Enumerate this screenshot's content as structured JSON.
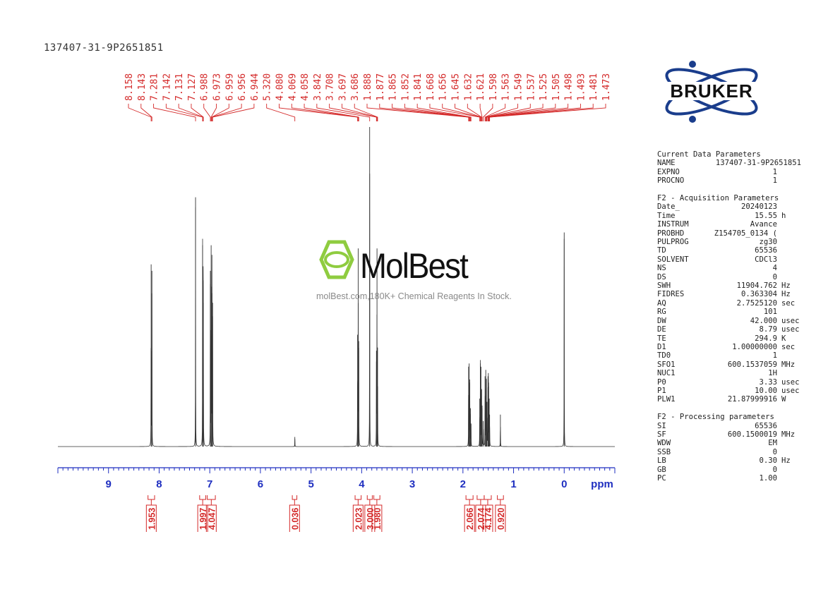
{
  "sample_id": "137407-31-9P2651851",
  "brand": "BRUKER",
  "watermark": {
    "name": "MolBest",
    "tagline": "molBest.com,180K+ Chemical Reagents In Stock."
  },
  "params": {
    "current": {
      "title": "Current Data Parameters",
      "rows": [
        {
          "key": "NAME",
          "value": "137407-31-9P2651851",
          "unit": ""
        },
        {
          "key": "EXPNO",
          "value": "1",
          "unit": ""
        },
        {
          "key": "PROCNO",
          "value": "1",
          "unit": ""
        }
      ]
    },
    "acquisition": {
      "title": "F2 - Acquisition Parameters",
      "rows": [
        {
          "key": "Date_",
          "value": "20240123",
          "unit": ""
        },
        {
          "key": "Time",
          "value": "15.55",
          "unit": "h"
        },
        {
          "key": "INSTRUM",
          "value": "Avance",
          "unit": ""
        },
        {
          "key": "PROBHD",
          "value": "Z154705_0134 (",
          "unit": ""
        },
        {
          "key": "PULPROG",
          "value": "zg30",
          "unit": ""
        },
        {
          "key": "TD",
          "value": "65536",
          "unit": ""
        },
        {
          "key": "SOLVENT",
          "value": "CDCl3",
          "unit": ""
        },
        {
          "key": "NS",
          "value": "4",
          "unit": ""
        },
        {
          "key": "DS",
          "value": "0",
          "unit": ""
        },
        {
          "key": "SWH",
          "value": "11904.762",
          "unit": "Hz"
        },
        {
          "key": "FIDRES",
          "value": "0.363304",
          "unit": "Hz"
        },
        {
          "key": "AQ",
          "value": "2.7525120",
          "unit": "sec"
        },
        {
          "key": "RG",
          "value": "101",
          "unit": ""
        },
        {
          "key": "DW",
          "value": "42.000",
          "unit": "usec"
        },
        {
          "key": "DE",
          "value": "8.79",
          "unit": "usec"
        },
        {
          "key": "TE",
          "value": "294.9",
          "unit": "K"
        },
        {
          "key": "D1",
          "value": "1.00000000",
          "unit": "sec"
        },
        {
          "key": "TD0",
          "value": "1",
          "unit": ""
        },
        {
          "key": "SFO1",
          "value": "600.1537059",
          "unit": "MHz"
        },
        {
          "key": "NUC1",
          "value": "1H",
          "unit": ""
        },
        {
          "key": "P0",
          "value": "3.33",
          "unit": "usec"
        },
        {
          "key": "P1",
          "value": "10.00",
          "unit": "usec"
        },
        {
          "key": "PLW1",
          "value": "21.87999916",
          "unit": "W"
        }
      ]
    },
    "processing": {
      "title": "F2 - Processing parameters",
      "rows": [
        {
          "key": "SI",
          "value": "65536",
          "unit": ""
        },
        {
          "key": "SF",
          "value": "600.1500019",
          "unit": "MHz"
        },
        {
          "key": "WDW",
          "value": "EM",
          "unit": ""
        },
        {
          "key": "SSB",
          "value": "0",
          "unit": ""
        },
        {
          "key": "LB",
          "value": "0.30",
          "unit": "Hz"
        },
        {
          "key": "GB",
          "value": "0",
          "unit": ""
        },
        {
          "key": "PC",
          "value": "1.00",
          "unit": ""
        }
      ]
    }
  },
  "colors": {
    "peak_labels": "#d42a2a",
    "axis": "#1f2fc0",
    "spectrum": "#333333",
    "logo": "#1a3d8c"
  },
  "chart_data": {
    "type": "line",
    "xlabel": "ppm",
    "xlim": [
      10.0,
      -1.0
    ],
    "x_ticks": [
      9,
      8,
      7,
      6,
      5,
      4,
      3,
      2,
      1,
      0
    ],
    "peak_labels": [
      "8.158",
      "8.143",
      "7.281",
      "7.142",
      "7.131",
      "7.127",
      "6.988",
      "6.973",
      "6.959",
      "6.956",
      "6.944",
      "5.320",
      "4.080",
      "4.069",
      "4.058",
      "3.842",
      "3.708",
      "3.697",
      "3.686",
      "1.888",
      "1.877",
      "1.865",
      "1.852",
      "1.841",
      "1.668",
      "1.656",
      "1.645",
      "1.632",
      "1.621",
      "1.598",
      "1.563",
      "1.549",
      "1.537",
      "1.525",
      "1.505",
      "1.498",
      "1.493",
      "1.481",
      "1.473"
    ],
    "integrals": [
      {
        "value": "1.953",
        "from": 8.22,
        "to": 8.09
      },
      {
        "value": "1.997",
        "from": 7.2,
        "to": 7.08
      },
      {
        "value": "4.047",
        "from": 7.05,
        "to": 6.89
      },
      {
        "value": "0.036",
        "from": 5.37,
        "to": 5.28
      },
      {
        "value": "2.023",
        "from": 4.13,
        "to": 4.01
      },
      {
        "value": "3.000",
        "from": 3.89,
        "to": 3.79
      },
      {
        "value": "1.980",
        "from": 3.76,
        "to": 3.64
      },
      {
        "value": "2.066",
        "from": 1.94,
        "to": 1.8
      },
      {
        "value": "2.074",
        "from": 1.72,
        "to": 1.58
      },
      {
        "value": "4.174",
        "from": 1.58,
        "to": 1.44
      },
      {
        "value": "0.920",
        "from": 1.32,
        "to": 1.2
      }
    ],
    "peaks": [
      {
        "ppm": 8.158,
        "height": 0.57
      },
      {
        "ppm": 8.143,
        "height": 0.55
      },
      {
        "ppm": 7.281,
        "height": 0.78
      },
      {
        "ppm": 7.142,
        "height": 0.63
      },
      {
        "ppm": 7.131,
        "height": 0.52
      },
      {
        "ppm": 7.127,
        "height": 0.45
      },
      {
        "ppm": 6.988,
        "height": 0.55
      },
      {
        "ppm": 6.973,
        "height": 0.63
      },
      {
        "ppm": 6.959,
        "height": 0.5
      },
      {
        "ppm": 6.956,
        "height": 0.48
      },
      {
        "ppm": 6.944,
        "height": 0.45
      },
      {
        "ppm": 5.32,
        "height": 0.03
      },
      {
        "ppm": 4.08,
        "height": 0.35
      },
      {
        "ppm": 4.069,
        "height": 0.62
      },
      {
        "ppm": 4.058,
        "height": 0.33
      },
      {
        "ppm": 3.842,
        "height": 1.0
      },
      {
        "ppm": 3.708,
        "height": 0.3
      },
      {
        "ppm": 3.697,
        "height": 0.62
      },
      {
        "ppm": 3.686,
        "height": 0.31
      },
      {
        "ppm": 1.888,
        "height": 0.25
      },
      {
        "ppm": 1.877,
        "height": 0.26
      },
      {
        "ppm": 1.865,
        "height": 0.2
      },
      {
        "ppm": 1.852,
        "height": 0.12
      },
      {
        "ppm": 1.841,
        "height": 0.07
      },
      {
        "ppm": 1.668,
        "height": 0.15
      },
      {
        "ppm": 1.656,
        "height": 0.26
      },
      {
        "ppm": 1.645,
        "height": 0.25
      },
      {
        "ppm": 1.632,
        "height": 0.18
      },
      {
        "ppm": 1.621,
        "height": 0.12
      },
      {
        "ppm": 1.598,
        "height": 0.08
      },
      {
        "ppm": 1.563,
        "height": 0.22
      },
      {
        "ppm": 1.549,
        "height": 0.24
      },
      {
        "ppm": 1.537,
        "height": 0.21
      },
      {
        "ppm": 1.525,
        "height": 0.14
      },
      {
        "ppm": 1.505,
        "height": 0.22
      },
      {
        "ppm": 1.498,
        "height": 0.23
      },
      {
        "ppm": 1.493,
        "height": 0.2
      },
      {
        "ppm": 1.481,
        "height": 0.15
      },
      {
        "ppm": 1.473,
        "height": 0.1
      },
      {
        "ppm": 1.26,
        "height": 0.1
      },
      {
        "ppm": 0.0,
        "height": 0.67
      }
    ]
  }
}
